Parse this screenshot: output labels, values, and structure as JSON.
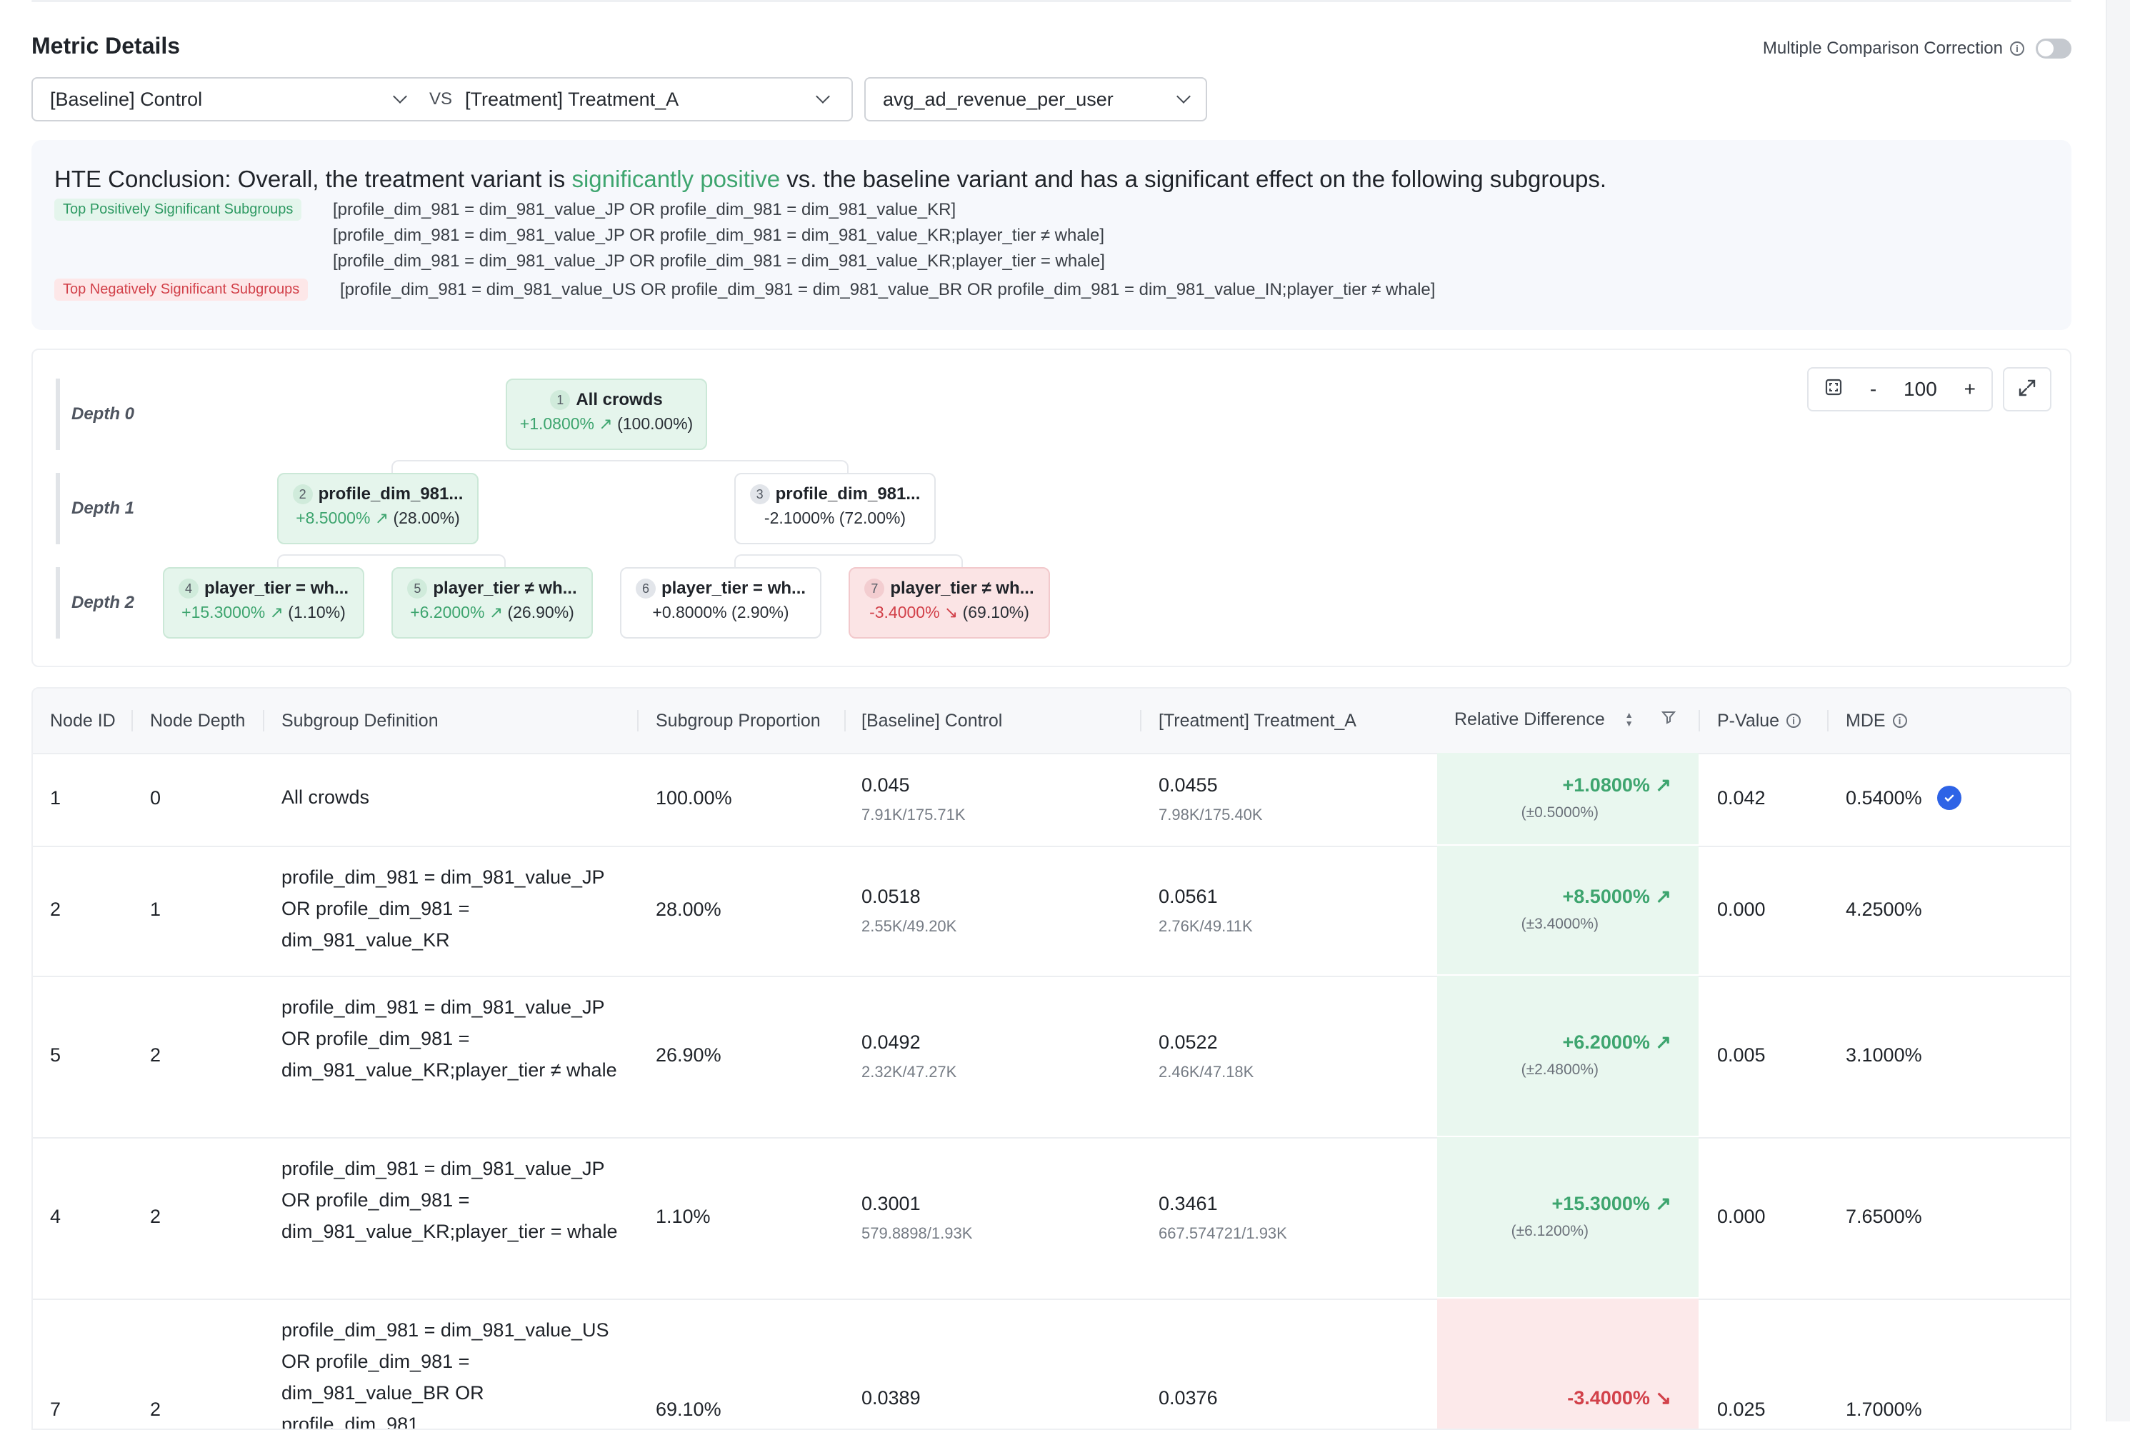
{
  "header": {
    "title": "Metric Details",
    "mcc_label": "Multiple Comparison Correction",
    "baseline_select": "[Baseline] Control",
    "vs_label": "VS",
    "treatment_select": "[Treatment] Treatment_A",
    "metric_select": "avg_ad_revenue_per_user"
  },
  "conclusion": {
    "prefix": "HTE Conclusion: Overall, the treatment variant is",
    "highlight": "significantly positive",
    "suffix": "vs. the baseline variant and has a significant effect on the following subgroups.",
    "pos_tag": "Top Positively Significant Subgroups",
    "pos_lines": [
      "[profile_dim_981 = dim_981_value_JP OR profile_dim_981 = dim_981_value_KR]",
      "[profile_dim_981 = dim_981_value_JP OR profile_dim_981 = dim_981_value_KR;player_tier ≠ whale]",
      "[profile_dim_981 = dim_981_value_JP OR profile_dim_981 = dim_981_value_KR;player_tier = whale]"
    ],
    "neg_tag": "Top Negatively Significant Subgroups",
    "neg_lines": [
      "[profile_dim_981 = dim_981_value_US OR profile_dim_981 = dim_981_value_BR OR profile_dim_981 = dim_981_value_IN;player_tier ≠ whale]"
    ],
    "colors": {
      "positive": "#3ea56f",
      "negative": "#d2414a"
    }
  },
  "tree": {
    "depth_labels": [
      "Depth 0",
      "Depth 1",
      "Depth 2"
    ],
    "zoom": {
      "minus": "-",
      "value": "100",
      "plus": "+"
    },
    "icons": {
      "fit": "fit-screen-icon",
      "fullscreen": "expand-icon"
    },
    "nodes": [
      {
        "id": "1",
        "title": "All crowds",
        "diff": "+1.0800%",
        "prop": "(100.00%)",
        "tone": "positive"
      },
      {
        "id": "2",
        "title": "profile_dim_981...",
        "diff": "+8.5000%",
        "prop": "(28.00%)",
        "tone": "positive"
      },
      {
        "id": "3",
        "title": "profile_dim_981...",
        "diff": "-2.1000%",
        "prop": "(72.00%)",
        "tone": "neutral"
      },
      {
        "id": "4",
        "title": "player_tier = wh...",
        "diff": "+15.3000%",
        "prop": "(1.10%)",
        "tone": "positive"
      },
      {
        "id": "5",
        "title": "player_tier ≠ wh...",
        "diff": "+6.2000%",
        "prop": "(26.90%)",
        "tone": "positive"
      },
      {
        "id": "6",
        "title": "player_tier = wh...",
        "diff": "+0.8000%",
        "prop": "(2.90%)",
        "tone": "neutral"
      },
      {
        "id": "7",
        "title": "player_tier ≠ wh...",
        "diff": "-3.4000%",
        "prop": "(69.10%)",
        "tone": "negative"
      }
    ]
  },
  "table": {
    "headers": [
      "Node ID",
      "Node Depth",
      "Subgroup Definition",
      "Subgroup Proportion",
      "[Baseline] Control",
      "[Treatment] Treatment_A",
      "Relative Difference",
      "P-Value",
      "MDE"
    ],
    "rows": [
      {
        "node_id": "1",
        "depth": "0",
        "definition": "All crowds",
        "proportion": "100.00%",
        "baseline": "0.045",
        "baseline_sub": "7.91K/175.71K",
        "treatment": "0.0455",
        "treatment_sub": "7.98K/175.40K",
        "rel": "+1.0800%",
        "rel_ci": "(±0.5000%)",
        "tone": "positive",
        "pvalue": "0.042",
        "mde": "0.5400%",
        "checked": true
      },
      {
        "node_id": "2",
        "depth": "1",
        "definition": "profile_dim_981 = dim_981_value_JP OR profile_dim_981 = dim_981_value_KR",
        "proportion": "28.00%",
        "baseline": "0.0518",
        "baseline_sub": "2.55K/49.20K",
        "treatment": "0.0561",
        "treatment_sub": "2.76K/49.11K",
        "rel": "+8.5000%",
        "rel_ci": "(±3.4000%)",
        "tone": "positive",
        "pvalue": "0.000",
        "mde": "4.2500%",
        "checked": false
      },
      {
        "node_id": "5",
        "depth": "2",
        "definition": "profile_dim_981 = dim_981_value_JP OR profile_dim_981 = dim_981_value_KR;player_tier ≠ whale",
        "proportion": "26.90%",
        "baseline": "0.0492",
        "baseline_sub": "2.32K/47.27K",
        "treatment": "0.0522",
        "treatment_sub": "2.46K/47.18K",
        "rel": "+6.2000%",
        "rel_ci": "(±2.4800%)",
        "tone": "positive",
        "pvalue": "0.005",
        "mde": "3.1000%",
        "checked": false
      },
      {
        "node_id": "4",
        "depth": "2",
        "definition": "profile_dim_981 = dim_981_value_JP OR profile_dim_981 = dim_981_value_KR;player_tier = whale",
        "proportion": "1.10%",
        "baseline": "0.3001",
        "baseline_sub": "579.8898/1.93K",
        "treatment": "0.3461",
        "treatment_sub": "667.574721/1.93K",
        "rel": "+15.3000%",
        "rel_ci": "(±6.1200%)",
        "tone": "positive",
        "pvalue": "0.000",
        "mde": "7.6500%",
        "checked": false
      },
      {
        "node_id": "7",
        "depth": "2",
        "definition": "profile_dim_981 = dim_981_value_US OR profile_dim_981 = dim_981_value_BR OR profile_dim_981...",
        "proportion": "69.10%",
        "baseline": "0.0389",
        "baseline_sub": "",
        "treatment": "0.0376",
        "treatment_sub": "",
        "rel": "-3.4000%",
        "rel_ci": "",
        "tone": "negative",
        "pvalue": "0.025",
        "mde": "1.7000%",
        "checked": false
      }
    ]
  }
}
